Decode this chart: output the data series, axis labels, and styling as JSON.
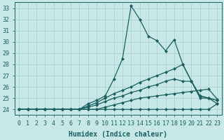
{
  "title": "",
  "xlabel": "Humidex (Indice chaleur)",
  "ylabel": "",
  "bg_color": "#c8e8e8",
  "grid_color": "#a8cccc",
  "line_color": "#1a6060",
  "xlim": [
    -0.5,
    23.5
  ],
  "ylim": [
    23.5,
    33.5
  ],
  "yticks": [
    24,
    25,
    26,
    27,
    28,
    29,
    30,
    31,
    32,
    33
  ],
  "xticks": [
    0,
    1,
    2,
    3,
    4,
    5,
    6,
    7,
    8,
    9,
    10,
    11,
    12,
    13,
    14,
    15,
    16,
    17,
    18,
    19,
    20,
    21,
    22,
    23
  ],
  "xtick_labels": [
    "0",
    "1",
    "2",
    "3",
    "4",
    "5",
    "6",
    "7",
    "8",
    "9",
    "10",
    "11",
    "12",
    "13",
    "14",
    "15",
    "16",
    "17",
    "18",
    "19",
    "20",
    "21",
    "22",
    "23"
  ],
  "lines": [
    {
      "x": [
        0,
        1,
        2,
        3,
        4,
        5,
        6,
        7,
        8,
        9,
        10,
        11,
        12,
        13,
        14,
        15,
        16,
        17,
        18,
        19,
        20,
        21,
        22,
        23
      ],
      "y": [
        24,
        24,
        24,
        24,
        24,
        24,
        24,
        24,
        24,
        24,
        24,
        24,
        24,
        24,
        24,
        24,
        24,
        24,
        24,
        24,
        24,
        24,
        24,
        24.5
      ]
    },
    {
      "x": [
        0,
        1,
        2,
        3,
        4,
        5,
        6,
        7,
        8,
        9,
        10,
        11,
        12,
        13,
        14,
        15,
        16,
        17,
        18,
        19,
        20,
        21,
        22,
        23
      ],
      "y": [
        24,
        24,
        24,
        24,
        24,
        24,
        24,
        24,
        24,
        24,
        24.2,
        24.4,
        24.6,
        24.8,
        25.0,
        25.1,
        25.2,
        25.3,
        25.4,
        25.5,
        25.6,
        25.7,
        25.8,
        24.9
      ]
    },
    {
      "x": [
        0,
        1,
        2,
        3,
        4,
        5,
        6,
        7,
        8,
        9,
        10,
        11,
        12,
        13,
        14,
        15,
        16,
        17,
        18,
        19,
        20,
        21,
        22,
        23
      ],
      "y": [
        24,
        24,
        24,
        24,
        24,
        24,
        24,
        24,
        24.2,
        24.4,
        24.7,
        25.0,
        25.2,
        25.5,
        25.7,
        26.0,
        26.2,
        26.5,
        26.7,
        26.5,
        26.5,
        25.2,
        25.0,
        24.8
      ]
    },
    {
      "x": [
        0,
        1,
        2,
        3,
        4,
        5,
        6,
        7,
        8,
        9,
        10,
        11,
        12,
        13,
        14,
        15,
        16,
        17,
        18,
        19,
        20,
        21,
        22,
        23
      ],
      "y": [
        24,
        24,
        24,
        24,
        24,
        24,
        24,
        24,
        24.3,
        24.6,
        25.0,
        25.4,
        25.7,
        26.0,
        26.4,
        26.7,
        27.0,
        27.3,
        27.6,
        28.0,
        26.5,
        25.2,
        25.0,
        24.8
      ]
    },
    {
      "x": [
        0,
        1,
        2,
        3,
        4,
        5,
        6,
        7,
        8,
        9,
        10,
        11,
        12,
        13,
        14,
        15,
        16,
        17,
        18,
        19,
        20,
        21,
        22,
        23
      ],
      "y": [
        24,
        24,
        24,
        24,
        24,
        24,
        24,
        24,
        24.5,
        24.8,
        25.2,
        26.7,
        28.5,
        33.2,
        32.0,
        30.5,
        30.1,
        29.2,
        30.2,
        28.0,
        26.5,
        25.0,
        25.0,
        24.5
      ]
    }
  ],
  "marker": "D",
  "markersize": 2.0,
  "linewidth": 0.9,
  "tick_fontsize": 6.0,
  "label_fontsize": 7.0
}
